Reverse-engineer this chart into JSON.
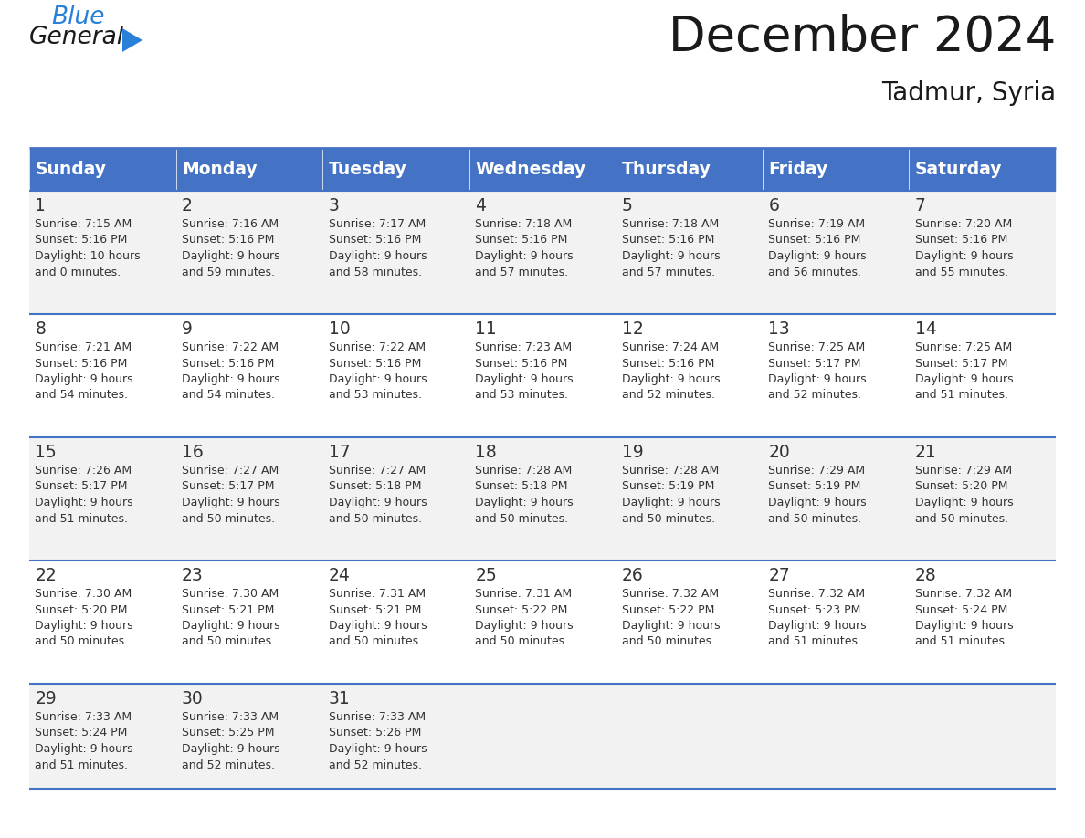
{
  "title": "December 2024",
  "subtitle": "Tadmur, Syria",
  "days_of_week": [
    "Sunday",
    "Monday",
    "Tuesday",
    "Wednesday",
    "Thursday",
    "Friday",
    "Saturday"
  ],
  "header_bg": "#4472C4",
  "header_text": "#FFFFFF",
  "row_bg_odd": "#F2F2F2",
  "row_bg_even": "#FFFFFF",
  "sep_color": "#4472C4",
  "text_color": "#333333",
  "logo_general_color": "#1a1a1a",
  "logo_blue_color": "#2980D9",
  "logo_triangle_color": "#2980D9",
  "calendar_data": [
    [
      {
        "day": 1,
        "sunrise": "7:15 AM",
        "sunset": "5:16 PM",
        "daylight_h": "10 hours",
        "daylight_m": "and 0 minutes."
      },
      {
        "day": 2,
        "sunrise": "7:16 AM",
        "sunset": "5:16 PM",
        "daylight_h": "9 hours",
        "daylight_m": "and 59 minutes."
      },
      {
        "day": 3,
        "sunrise": "7:17 AM",
        "sunset": "5:16 PM",
        "daylight_h": "9 hours",
        "daylight_m": "and 58 minutes."
      },
      {
        "day": 4,
        "sunrise": "7:18 AM",
        "sunset": "5:16 PM",
        "daylight_h": "9 hours",
        "daylight_m": "and 57 minutes."
      },
      {
        "day": 5,
        "sunrise": "7:18 AM",
        "sunset": "5:16 PM",
        "daylight_h": "9 hours",
        "daylight_m": "and 57 minutes."
      },
      {
        "day": 6,
        "sunrise": "7:19 AM",
        "sunset": "5:16 PM",
        "daylight_h": "9 hours",
        "daylight_m": "and 56 minutes."
      },
      {
        "day": 7,
        "sunrise": "7:20 AM",
        "sunset": "5:16 PM",
        "daylight_h": "9 hours",
        "daylight_m": "and 55 minutes."
      }
    ],
    [
      {
        "day": 8,
        "sunrise": "7:21 AM",
        "sunset": "5:16 PM",
        "daylight_h": "9 hours",
        "daylight_m": "and 54 minutes."
      },
      {
        "day": 9,
        "sunrise": "7:22 AM",
        "sunset": "5:16 PM",
        "daylight_h": "9 hours",
        "daylight_m": "and 54 minutes."
      },
      {
        "day": 10,
        "sunrise": "7:22 AM",
        "sunset": "5:16 PM",
        "daylight_h": "9 hours",
        "daylight_m": "and 53 minutes."
      },
      {
        "day": 11,
        "sunrise": "7:23 AM",
        "sunset": "5:16 PM",
        "daylight_h": "9 hours",
        "daylight_m": "and 53 minutes."
      },
      {
        "day": 12,
        "sunrise": "7:24 AM",
        "sunset": "5:16 PM",
        "daylight_h": "9 hours",
        "daylight_m": "and 52 minutes."
      },
      {
        "day": 13,
        "sunrise": "7:25 AM",
        "sunset": "5:17 PM",
        "daylight_h": "9 hours",
        "daylight_m": "and 52 minutes."
      },
      {
        "day": 14,
        "sunrise": "7:25 AM",
        "sunset": "5:17 PM",
        "daylight_h": "9 hours",
        "daylight_m": "and 51 minutes."
      }
    ],
    [
      {
        "day": 15,
        "sunrise": "7:26 AM",
        "sunset": "5:17 PM",
        "daylight_h": "9 hours",
        "daylight_m": "and 51 minutes."
      },
      {
        "day": 16,
        "sunrise": "7:27 AM",
        "sunset": "5:17 PM",
        "daylight_h": "9 hours",
        "daylight_m": "and 50 minutes."
      },
      {
        "day": 17,
        "sunrise": "7:27 AM",
        "sunset": "5:18 PM",
        "daylight_h": "9 hours",
        "daylight_m": "and 50 minutes."
      },
      {
        "day": 18,
        "sunrise": "7:28 AM",
        "sunset": "5:18 PM",
        "daylight_h": "9 hours",
        "daylight_m": "and 50 minutes."
      },
      {
        "day": 19,
        "sunrise": "7:28 AM",
        "sunset": "5:19 PM",
        "daylight_h": "9 hours",
        "daylight_m": "and 50 minutes."
      },
      {
        "day": 20,
        "sunrise": "7:29 AM",
        "sunset": "5:19 PM",
        "daylight_h": "9 hours",
        "daylight_m": "and 50 minutes."
      },
      {
        "day": 21,
        "sunrise": "7:29 AM",
        "sunset": "5:20 PM",
        "daylight_h": "9 hours",
        "daylight_m": "and 50 minutes."
      }
    ],
    [
      {
        "day": 22,
        "sunrise": "7:30 AM",
        "sunset": "5:20 PM",
        "daylight_h": "9 hours",
        "daylight_m": "and 50 minutes."
      },
      {
        "day": 23,
        "sunrise": "7:30 AM",
        "sunset": "5:21 PM",
        "daylight_h": "9 hours",
        "daylight_m": "and 50 minutes."
      },
      {
        "day": 24,
        "sunrise": "7:31 AM",
        "sunset": "5:21 PM",
        "daylight_h": "9 hours",
        "daylight_m": "and 50 minutes."
      },
      {
        "day": 25,
        "sunrise": "7:31 AM",
        "sunset": "5:22 PM",
        "daylight_h": "9 hours",
        "daylight_m": "and 50 minutes."
      },
      {
        "day": 26,
        "sunrise": "7:32 AM",
        "sunset": "5:22 PM",
        "daylight_h": "9 hours",
        "daylight_m": "and 50 minutes."
      },
      {
        "day": 27,
        "sunrise": "7:32 AM",
        "sunset": "5:23 PM",
        "daylight_h": "9 hours",
        "daylight_m": "and 51 minutes."
      },
      {
        "day": 28,
        "sunrise": "7:32 AM",
        "sunset": "5:24 PM",
        "daylight_h": "9 hours",
        "daylight_m": "and 51 minutes."
      }
    ],
    [
      {
        "day": 29,
        "sunrise": "7:33 AM",
        "sunset": "5:24 PM",
        "daylight_h": "9 hours",
        "daylight_m": "and 51 minutes."
      },
      {
        "day": 30,
        "sunrise": "7:33 AM",
        "sunset": "5:25 PM",
        "daylight_h": "9 hours",
        "daylight_m": "and 52 minutes."
      },
      {
        "day": 31,
        "sunrise": "7:33 AM",
        "sunset": "5:26 PM",
        "daylight_h": "9 hours",
        "daylight_m": "and 52 minutes."
      },
      null,
      null,
      null,
      null
    ]
  ]
}
